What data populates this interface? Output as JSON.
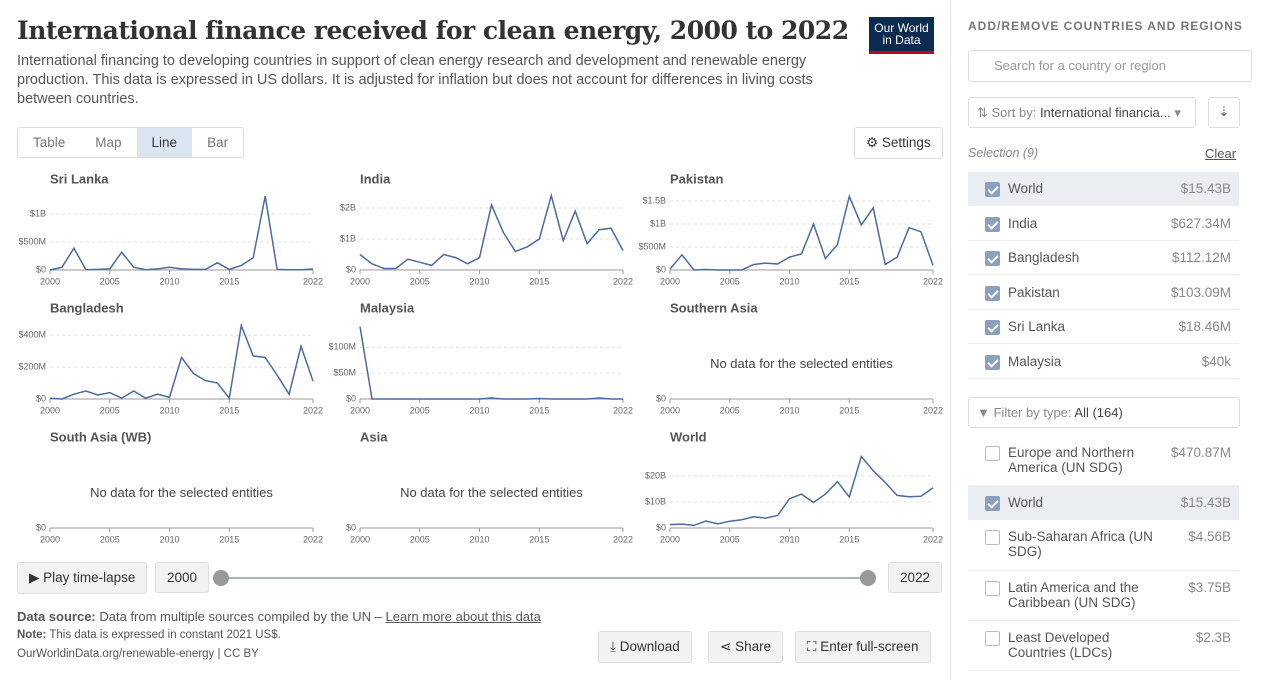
{
  "header": {
    "title": "International finance received for clean energy, 2000 to 2022",
    "subtitle": "International financing to developing countries in support of clean energy research and development and renewable energy production. This data is expressed in US dollars. It is adjusted for inflation but does not account for differences in living costs between countries.",
    "logo": [
      "Our World",
      "in Data"
    ]
  },
  "tabs": [
    "Table",
    "Map",
    "Line",
    "Bar"
  ],
  "active_tab": 2,
  "settings": "Settings",
  "chart_data": [
    {
      "type": "line",
      "title": "Sri Lanka",
      "color": "#4c6a9c",
      "xlim": [
        2000,
        2022
      ],
      "xticks": [
        2000,
        2005,
        2010,
        2015,
        2022
      ],
      "ylim": [
        0,
        1340000000
      ],
      "yticks": [
        {
          "value": 0,
          "label": "$0"
        },
        {
          "value": 500000000,
          "label": "$500M"
        },
        {
          "value": 1000000000,
          "label": "$1B"
        }
      ],
      "x": [
        2000,
        2001,
        2002,
        2003,
        2004,
        2005,
        2006,
        2007,
        2008,
        2009,
        2010,
        2011,
        2012,
        2013,
        2014,
        2015,
        2016,
        2017,
        2018,
        2019,
        2020,
        2021,
        2022
      ],
      "values": [
        0,
        50000000,
        390000000,
        5000000,
        10000000,
        20000000,
        320000000,
        50000000,
        5000000,
        20000000,
        50000000,
        20000000,
        10000000,
        10000000,
        130000000,
        10000000,
        80000000,
        220000000,
        1320000000,
        10000000,
        5000000,
        5000000,
        18460000
      ]
    },
    {
      "type": "line",
      "title": "India",
      "color": "#4c6a9c",
      "xlim": [
        2000,
        2022
      ],
      "xticks": [
        2000,
        2005,
        2010,
        2015,
        2022
      ],
      "ylim": [
        0,
        2420000000
      ],
      "yticks": [
        {
          "value": 0,
          "label": "$0"
        },
        {
          "value": 1000000000,
          "label": "$1B"
        },
        {
          "value": 2000000000,
          "label": "$2B"
        }
      ],
      "x": [
        2000,
        2001,
        2002,
        2003,
        2004,
        2005,
        2006,
        2007,
        2008,
        2009,
        2010,
        2011,
        2012,
        2013,
        2014,
        2015,
        2016,
        2017,
        2018,
        2019,
        2020,
        2021,
        2022
      ],
      "values": [
        500000000,
        200000000,
        50000000,
        50000000,
        350000000,
        250000000,
        150000000,
        500000000,
        400000000,
        200000000,
        400000000,
        2100000000,
        1200000000,
        600000000,
        750000000,
        1000000000,
        2400000000,
        950000000,
        1900000000,
        850000000,
        1300000000,
        1350000000,
        627340000
      ]
    },
    {
      "type": "line",
      "title": "Pakistan",
      "color": "#4c6a9c",
      "xlim": [
        2000,
        2022
      ],
      "xticks": [
        2000,
        2005,
        2010,
        2015,
        2022
      ],
      "ylim": [
        0,
        1630000000
      ],
      "yticks": [
        {
          "value": 0,
          "label": "$0"
        },
        {
          "value": 500000000,
          "label": "$500M"
        },
        {
          "value": 1000000000,
          "label": "$1B"
        },
        {
          "value": 1500000000,
          "label": "$1.5B"
        }
      ],
      "x": [
        2000,
        2001,
        2002,
        2003,
        2004,
        2005,
        2006,
        2007,
        2008,
        2009,
        2010,
        2011,
        2012,
        2013,
        2014,
        2015,
        2016,
        2017,
        2018,
        2019,
        2020,
        2021,
        2022
      ],
      "values": [
        20000000,
        330000000,
        0,
        10000000,
        0,
        0,
        0,
        120000000,
        150000000,
        130000000,
        280000000,
        350000000,
        1000000000,
        250000000,
        550000000,
        1600000000,
        980000000,
        1350000000,
        120000000,
        280000000,
        920000000,
        830000000,
        103090000
      ]
    },
    {
      "type": "line",
      "title": "Bangladesh",
      "color": "#4c6a9c",
      "xlim": [
        2000,
        2022
      ],
      "xticks": [
        2000,
        2005,
        2010,
        2015,
        2022
      ],
      "ylim": [
        0,
        470000000
      ],
      "yticks": [
        {
          "value": 0,
          "label": "$0"
        },
        {
          "value": 200000000,
          "label": "$200M"
        },
        {
          "value": 400000000,
          "label": "$400M"
        }
      ],
      "x": [
        2000,
        2001,
        2002,
        2003,
        2004,
        2005,
        2006,
        2007,
        2008,
        2009,
        2010,
        2011,
        2012,
        2013,
        2014,
        2015,
        2016,
        2017,
        2018,
        2019,
        2020,
        2021,
        2022
      ],
      "values": [
        5000000,
        0,
        30000000,
        50000000,
        25000000,
        40000000,
        5000000,
        50000000,
        5000000,
        30000000,
        10000000,
        260000000,
        160000000,
        115000000,
        100000000,
        5000000,
        460000000,
        270000000,
        260000000,
        150000000,
        30000000,
        330000000,
        112120000
      ]
    },
    {
      "type": "line",
      "title": "Malaysia",
      "color": "#4c6a9c",
      "xlim": [
        2000,
        2022
      ],
      "xticks": [
        2000,
        2005,
        2010,
        2015,
        2022
      ],
      "ylim": [
        0,
        145000000
      ],
      "yticks": [
        {
          "value": 0,
          "label": "$0"
        },
        {
          "value": 50000000,
          "label": "$50M"
        },
        {
          "value": 100000000,
          "label": "$100M"
        }
      ],
      "x": [
        2000,
        2001,
        2002,
        2003,
        2004,
        2005,
        2006,
        2007,
        2008,
        2009,
        2010,
        2011,
        2012,
        2013,
        2014,
        2015,
        2016,
        2017,
        2018,
        2019,
        2020,
        2021,
        2022
      ],
      "values": [
        140000000,
        0,
        0,
        0,
        0,
        0,
        0,
        0,
        0,
        0,
        0,
        2000000,
        0,
        0,
        0,
        1000000,
        0,
        0,
        0,
        0,
        2000000,
        0,
        40000
      ]
    },
    {
      "type": "line",
      "title": "Southern Asia",
      "message": "No data for the selected entities",
      "xlim": [
        2000,
        2022
      ],
      "xticks": [
        2000,
        2005,
        2010,
        2015,
        2022
      ],
      "ylim": [
        0,
        1
      ],
      "yticks": [
        {
          "value": 0,
          "label": "$0"
        }
      ]
    },
    {
      "type": "line",
      "title": "South Asia (WB)",
      "message": "No data for the selected entities",
      "xlim": [
        2000,
        2022
      ],
      "xticks": [
        2000,
        2005,
        2010,
        2015,
        2022
      ],
      "ylim": [
        0,
        1
      ],
      "yticks": [
        {
          "value": 0,
          "label": "$0"
        }
      ]
    },
    {
      "type": "line",
      "title": "Asia",
      "message": "No data for the selected entities",
      "xlim": [
        2000,
        2022
      ],
      "xticks": [
        2000,
        2005,
        2010,
        2015,
        2022
      ],
      "ylim": [
        0,
        1
      ],
      "yticks": [
        {
          "value": 0,
          "label": "$0"
        }
      ]
    },
    {
      "type": "line",
      "title": "World",
      "color": "#4c6a9c",
      "xlim": [
        2000,
        2022
      ],
      "xticks": [
        2000,
        2005,
        2010,
        2015,
        2022
      ],
      "ylim": [
        0,
        28800000000
      ],
      "yticks": [
        {
          "value": 0,
          "label": "$0"
        },
        {
          "value": 10000000000,
          "label": "$10B"
        },
        {
          "value": 20000000000,
          "label": "$20B"
        }
      ],
      "x": [
        2000,
        2001,
        2002,
        2003,
        2004,
        2005,
        2006,
        2007,
        2008,
        2009,
        2010,
        2011,
        2012,
        2013,
        2014,
        2015,
        2016,
        2017,
        2018,
        2019,
        2020,
        2021,
        2022
      ],
      "values": [
        1300000000,
        1500000000,
        1000000000,
        2700000000,
        1600000000,
        2600000000,
        3200000000,
        4300000000,
        3800000000,
        4800000000,
        11200000000,
        13000000000,
        9800000000,
        13000000000,
        17800000000,
        11900000000,
        27500000000,
        22000000000,
        17500000000,
        12500000000,
        12000000000,
        12200000000,
        15430000000
      ]
    }
  ],
  "timeline": {
    "play": "Play time-lapse",
    "start": "2000",
    "end": "2022"
  },
  "footer": {
    "source_label": "Data source:",
    "source": "Data from multiple sources compiled by the UN – ",
    "source_link": "Learn more about this data",
    "note_label": "Note:",
    "note": "This data is expressed in constant 2021 US$.",
    "url": "OurWorldinData.org/renewable-energy | CC BY",
    "buttons": [
      "Download",
      "Share",
      "Enter full-screen"
    ]
  },
  "sidebar": {
    "heading": "ADD/REMOVE COUNTRIES AND REGIONS",
    "search": "Search for a country or region",
    "sort_label": "Sort by:",
    "sort_value": "International financia...",
    "selection": "Selection (9)",
    "clear": "Clear",
    "selected": [
      {
        "name": "World",
        "value": "$15.43B"
      },
      {
        "name": "India",
        "value": "$627.34M"
      },
      {
        "name": "Bangladesh",
        "value": "$112.12M"
      },
      {
        "name": "Pakistan",
        "value": "$103.09M"
      },
      {
        "name": "Sri Lanka",
        "value": "$18.46M"
      },
      {
        "name": "Malaysia",
        "value": "$40k"
      }
    ],
    "filter_label": "Filter by type:",
    "filter_value": "All (164)",
    "entities": [
      {
        "name": "Europe and Northern America (UN SDG)",
        "value": "$470.87M",
        "checked": false
      },
      {
        "name": "World",
        "value": "$15.43B",
        "checked": true
      },
      {
        "name": "Sub-Saharan Africa (UN SDG)",
        "value": "$4.56B",
        "checked": false
      },
      {
        "name": "Latin America and the Caribbean (UN SDG)",
        "value": "$3.75B",
        "checked": false
      },
      {
        "name": "Least Developed Countries (LDCs)",
        "value": "$2.3B",
        "checked": false
      }
    ]
  }
}
